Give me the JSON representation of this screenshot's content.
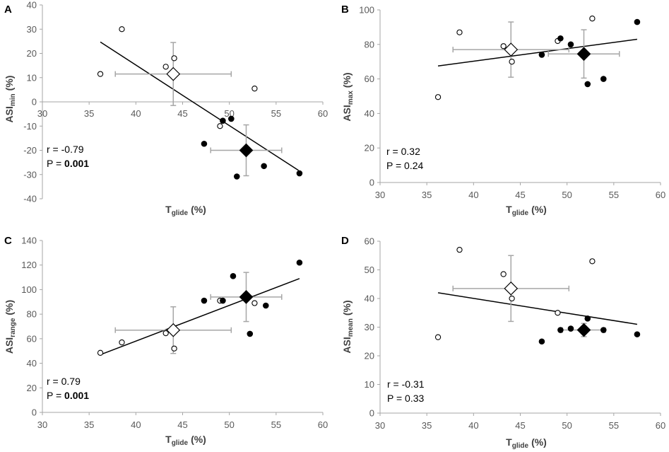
{
  "colors": {
    "axis": "#A6A6A6",
    "text": "#595959",
    "label": "#404040",
    "marker": "#000000",
    "errorbar": "#A6A6A6",
    "fit": "#000000"
  },
  "chart_data": [
    {
      "type": "scatter",
      "panel": "A",
      "ylabel_main": "ASI",
      "ylabel_sub": "min",
      "ylabel_unit": "(%)",
      "xlabel_main": "T",
      "xlabel_sub": "glide",
      "xlabel_unit": "(%)",
      "xlim": [
        30,
        60
      ],
      "ylim": [
        -40,
        40
      ],
      "xticks": [
        30,
        35,
        40,
        45,
        50,
        55,
        60
      ],
      "yticks": [
        -40,
        -30,
        -20,
        -10,
        0,
        10,
        20,
        30,
        40
      ],
      "xaxis_at": 0,
      "stat_r": "r = -0.79",
      "stat_p_label": "P = ",
      "stat_p_value": "0.001",
      "stat_p_bold": true,
      "open_points": [
        [
          36.2,
          11.5
        ],
        [
          38.5,
          30
        ],
        [
          43.2,
          14.5
        ],
        [
          44.1,
          18
        ],
        [
          49,
          -10
        ],
        [
          52.7,
          5.5
        ]
      ],
      "filled_points": [
        [
          47.3,
          -17.3
        ],
        [
          49.3,
          -7.8
        ],
        [
          50.2,
          -7
        ],
        [
          50.8,
          -30.8
        ],
        [
          53.7,
          -26.5
        ],
        [
          57.5,
          -29.5
        ]
      ],
      "open_mean": {
        "x": 44,
        "y": 11.5,
        "xerr": 6.2,
        "yerr": 13
      },
      "filled_mean": {
        "x": 51.8,
        "y": -20,
        "xerr": 3.8,
        "yerr": 10.5
      },
      "fit": [
        [
          36.2,
          24.7
        ],
        [
          57.4,
          -28.3
        ]
      ]
    },
    {
      "type": "scatter",
      "panel": "B",
      "ylabel_main": "ASI",
      "ylabel_sub": "max",
      "ylabel_unit": "(%)",
      "xlabel_main": "T",
      "xlabel_sub": "glide",
      "xlabel_unit": "(%)",
      "xlim": [
        30,
        60
      ],
      "ylim": [
        0,
        100
      ],
      "xticks": [
        30,
        35,
        40,
        45,
        50,
        55,
        60
      ],
      "yticks": [
        0,
        20,
        40,
        60,
        80,
        100
      ],
      "xaxis_at": 0,
      "stat_r": "r = 0.32",
      "stat_p_label": "P = ",
      "stat_p_value": "0.24",
      "stat_p_bold": false,
      "open_points": [
        [
          36.2,
          49.5
        ],
        [
          38.5,
          87
        ],
        [
          43.2,
          79
        ],
        [
          44.1,
          70
        ],
        [
          49,
          82
        ],
        [
          52.7,
          95
        ]
      ],
      "filled_points": [
        [
          47.3,
          74
        ],
        [
          49.3,
          83.5
        ],
        [
          50.4,
          80
        ],
        [
          52.2,
          57
        ],
        [
          53.9,
          60
        ],
        [
          57.5,
          93
        ]
      ],
      "open_mean": {
        "x": 44,
        "y": 77,
        "xerr": 6.2,
        "yerr": 16
      },
      "filled_mean": {
        "x": 51.8,
        "y": 74.5,
        "xerr": 3.8,
        "yerr": 14
      },
      "fit": [
        [
          36.2,
          67.5
        ],
        [
          57.5,
          83
        ]
      ]
    },
    {
      "type": "scatter",
      "panel": "C",
      "ylabel_main": "ASI",
      "ylabel_sub": "range",
      "ylabel_unit": "(%)",
      "xlabel_main": "T",
      "xlabel_sub": "glide",
      "xlabel_unit": "(%)",
      "xlim": [
        30,
        60
      ],
      "ylim": [
        0,
        140
      ],
      "xticks": [
        30,
        35,
        40,
        45,
        50,
        55,
        60
      ],
      "yticks": [
        0,
        20,
        40,
        60,
        80,
        100,
        120,
        140
      ],
      "xaxis_at": 0,
      "stat_r": "r = 0.79",
      "stat_p_label": "P = ",
      "stat_p_value": "0.001",
      "stat_p_bold": true,
      "open_points": [
        [
          36.2,
          48.5
        ],
        [
          38.5,
          57
        ],
        [
          43.2,
          64.5
        ],
        [
          44.1,
          52
        ],
        [
          49,
          91
        ],
        [
          52.7,
          89
        ]
      ],
      "filled_points": [
        [
          47.3,
          91
        ],
        [
          49.3,
          91
        ],
        [
          50.4,
          111
        ],
        [
          52.2,
          64
        ],
        [
          53.9,
          87
        ],
        [
          57.5,
          122
        ]
      ],
      "open_mean": {
        "x": 44,
        "y": 67,
        "xerr": 6.2,
        "yerr": 19
      },
      "filled_mean": {
        "x": 51.8,
        "y": 94,
        "xerr": 3.8,
        "yerr": 20
      },
      "fit": [
        [
          36.2,
          47
        ],
        [
          57.5,
          109
        ]
      ]
    },
    {
      "type": "scatter",
      "panel": "D",
      "ylabel_main": "ASI",
      "ylabel_sub": "mean",
      "ylabel_unit": "(%)",
      "xlabel_main": "T",
      "xlabel_sub": "glide",
      "xlabel_unit": "(%)",
      "xlim": [
        30,
        60
      ],
      "ylim": [
        0,
        60
      ],
      "xticks": [
        30,
        35,
        40,
        45,
        50,
        55,
        60
      ],
      "yticks": [
        0,
        10,
        20,
        30,
        40,
        50,
        60
      ],
      "xaxis_at": 0,
      "stat_r": "r = -0.31",
      "stat_p_label": "P = ",
      "stat_p_value": "0.33",
      "stat_p_bold": false,
      "open_points": [
        [
          36.2,
          26.5
        ],
        [
          38.5,
          57
        ],
        [
          43.2,
          48.5
        ],
        [
          44.1,
          40
        ],
        [
          49,
          35
        ],
        [
          52.7,
          53
        ]
      ],
      "filled_points": [
        [
          47.3,
          25
        ],
        [
          49.3,
          29
        ],
        [
          50.4,
          29.5
        ],
        [
          52.2,
          33
        ],
        [
          53.9,
          29
        ],
        [
          57.5,
          27.5
        ]
      ],
      "open_mean": {
        "x": 44,
        "y": 43.5,
        "xerr": 6.2,
        "yerr": 11.5
      },
      "filled_mean": {
        "x": 51.8,
        "y": 29,
        "xerr": 2.3,
        "yerr": 2.3
      },
      "fit": [
        [
          36.2,
          42
        ],
        [
          57.5,
          31
        ]
      ]
    }
  ]
}
